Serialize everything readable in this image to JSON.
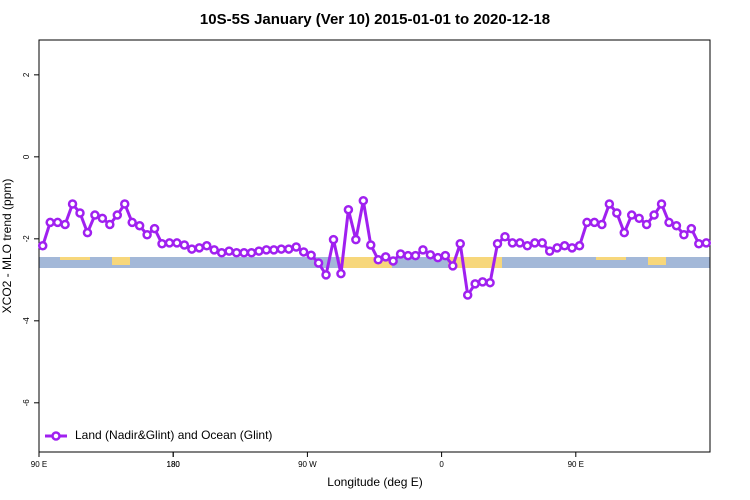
{
  "chart_data": {
    "type": "line",
    "title": "10S-5S January (Ver 10)   2015-01-01 to 2020-12-18",
    "x_label": "Longitude (deg E)",
    "y_label": "XCO2 - MLO trend (ppm)",
    "x": [
      92.5,
      97.5,
      102.5,
      107.5,
      112.5,
      117.5,
      122.5,
      127.5,
      132.5,
      137.5,
      142.5,
      147.5,
      152.5,
      157.5,
      162.5,
      167.5,
      172.5,
      177.5,
      182.5,
      187.5,
      192.5,
      197.5,
      202.5,
      207.5,
      212.5,
      217.5,
      222.5,
      227.5,
      232.5,
      237.5,
      242.5,
      247.5,
      252.5,
      257.5,
      262.5,
      267.5,
      272.5,
      277.5,
      282.5,
      287.5,
      292.5,
      297.5,
      302.5,
      307.5,
      312.5,
      317.5,
      322.5,
      327.5,
      332.5,
      337.5,
      342.5,
      347.5,
      352.5,
      357.5,
      362.5,
      367.5,
      372.5,
      377.5,
      382.5,
      387.5,
      392.5,
      397.5,
      402.5,
      407.5,
      412.5,
      417.5,
      422.5,
      427.5,
      432.5,
      437.5,
      442.5,
      447.5,
      452.5,
      457.5,
      462.5,
      467.5,
      472.5,
      477.5,
      482.5,
      487.5,
      492.5,
      497.5,
      502.5,
      507.5,
      512.5,
      517.5,
      522.5,
      527.5,
      532.5,
      537.5
    ],
    "series": [
      {
        "name": "Land (Nadir&Glint) and Ocean (Glint)",
        "color": "#a020f0",
        "values": [
          -2.17,
          -1.6,
          -1.6,
          -1.65,
          -1.15,
          -1.37,
          -1.85,
          -1.42,
          -1.5,
          -1.65,
          -1.42,
          -1.15,
          -1.6,
          -1.68,
          -1.9,
          -1.75,
          -2.12,
          -2.1,
          -2.1,
          -2.15,
          -2.25,
          -2.22,
          -2.17,
          -2.27,
          -2.34,
          -2.3,
          -2.34,
          -2.34,
          -2.34,
          -2.3,
          -2.27,
          -2.27,
          -2.25,
          -2.25,
          -2.2,
          -2.32,
          -2.4,
          -2.59,
          -2.88,
          -2.02,
          -2.85,
          -1.29,
          -2.02,
          -1.07,
          -2.15,
          -2.51,
          -2.44,
          -2.54,
          -2.37,
          -2.41,
          -2.41,
          -2.27,
          -2.39,
          -2.46,
          -2.41,
          -2.66,
          -2.12,
          -3.37,
          -3.1,
          -3.05,
          -3.07,
          -2.12,
          -1.95,
          -2.1,
          -2.1,
          -2.17,
          -2.1,
          -2.1,
          -2.3,
          -2.22,
          -2.17,
          -2.22,
          -2.17,
          -1.6,
          -1.6,
          -1.65,
          -1.15,
          -1.37,
          -1.85,
          -1.42,
          -1.5,
          -1.65,
          -1.42,
          -1.15,
          -1.6,
          -1.68,
          -1.9,
          -1.75,
          -2.12,
          -2.1
        ]
      }
    ],
    "xlim": [
      90,
      540
    ],
    "xticks": [
      {
        "value": 90,
        "label": "90 E"
      },
      180,
      {
        "value": 270,
        "label": "90 W"
      },
      {
        "value": 360,
        "label": "0"
      },
      {
        "value": 450,
        "label": "90 E"
      },
      180
    ],
    "ylim": [
      -7.2,
      2.85
    ],
    "yticks": [
      2,
      0,
      -2,
      -4,
      -6
    ],
    "legend": "bottom-left"
  }
}
